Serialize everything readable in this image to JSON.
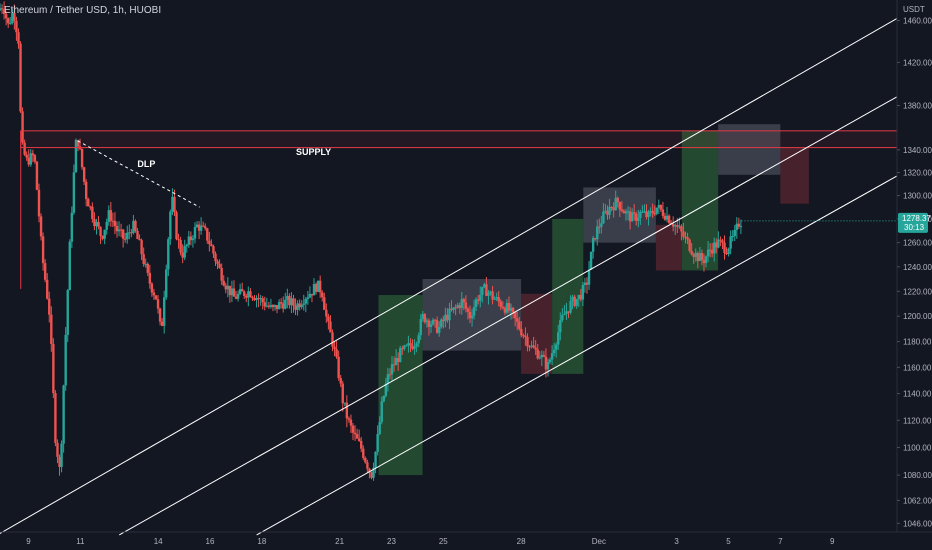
{
  "header": {
    "title": "Ethereum / Tether USD, 1h, HUOBI"
  },
  "price_axis": {
    "unit": "USDT",
    "ticks": [
      "1460.00",
      "1420.00",
      "1380.00",
      "1340.00",
      "1320.00",
      "1300.00",
      "1280.00",
      "1260.00",
      "1240.00",
      "1220.00",
      "1200.00",
      "1180.00",
      "1160.00",
      "1140.00",
      "1120.00",
      "1100.00",
      "1080.00",
      "1062.00",
      "1046.00"
    ],
    "tick_values": [
      1460,
      1420,
      1380,
      1340,
      1320,
      1300,
      1280,
      1260,
      1240,
      1220,
      1200,
      1180,
      1160,
      1140,
      1120,
      1100,
      1080,
      1062,
      1046
    ],
    "last_price": "1278.37",
    "countdown": "30:13"
  },
  "time_axis": {
    "labels": [
      "9",
      "11",
      "14",
      "16",
      "18",
      "21",
      "23",
      "25",
      "28",
      "Dec",
      "3",
      "5",
      "7",
      "9"
    ],
    "positions": [
      9,
      11,
      14,
      16,
      18,
      21,
      23,
      25,
      28,
      31,
      34,
      36,
      38,
      40
    ]
  },
  "annotations": {
    "supply_label": "SUPPLY",
    "dlp_label": "DLP"
  },
  "colors": {
    "background": "#131722",
    "bull": "#26a69a",
    "bear": "#ef5350",
    "supply": "#e53945",
    "channel": "#ffffff",
    "box_green": "#2e6b3c",
    "box_red": "#6b2a35",
    "box_grey": "#5a5f6b",
    "price_tag": "#26a69a"
  },
  "chart_data": {
    "type": "candlestick",
    "title": "Ethereum / Tether USD, 1h, HUOBI",
    "ylabel": "USDT",
    "yscale": "log",
    "ylim": [
      1040,
      1480
    ],
    "x_axis": "day of month (Nov 8 – Dec 10)",
    "xlim": [
      7.9,
      42.5
    ],
    "price_path": [
      [
        7.9,
        1470
      ],
      [
        8.1,
        1475
      ],
      [
        8.3,
        1455
      ],
      [
        8.5,
        1470
      ],
      [
        8.7,
        1440
      ],
      [
        8.8,
        1345
      ],
      [
        9.0,
        1330
      ],
      [
        9.3,
        1335
      ],
      [
        9.6,
        1250
      ],
      [
        9.9,
        1200
      ],
      [
        10.1,
        1110
      ],
      [
        10.3,
        1080
      ],
      [
        10.5,
        1180
      ],
      [
        10.7,
        1270
      ],
      [
        10.9,
        1345
      ],
      [
        11.0,
        1348
      ],
      [
        11.3,
        1300
      ],
      [
        11.6,
        1280
      ],
      [
        11.9,
        1265
      ],
      [
        12.2,
        1285
      ],
      [
        12.5,
        1270
      ],
      [
        12.8,
        1262
      ],
      [
        13.1,
        1275
      ],
      [
        13.4,
        1255
      ],
      [
        13.7,
        1230
      ],
      [
        14.0,
        1215
      ],
      [
        14.2,
        1185
      ],
      [
        14.4,
        1245
      ],
      [
        14.6,
        1300
      ],
      [
        14.8,
        1265
      ],
      [
        15.0,
        1250
      ],
      [
        15.3,
        1262
      ],
      [
        15.6,
        1275
      ],
      [
        15.9,
        1268
      ],
      [
        16.1,
        1258
      ],
      [
        16.4,
        1240
      ],
      [
        16.7,
        1225
      ],
      [
        17.0,
        1215
      ],
      [
        17.3,
        1218
      ],
      [
        17.6,
        1220
      ],
      [
        17.9,
        1215
      ],
      [
        18.2,
        1210
      ],
      [
        18.5,
        1205
      ],
      [
        18.8,
        1210
      ],
      [
        19.1,
        1212
      ],
      [
        19.4,
        1208
      ],
      [
        19.7,
        1215
      ],
      [
        20.0,
        1220
      ],
      [
        20.2,
        1225
      ],
      [
        20.4,
        1220
      ],
      [
        20.6,
        1195
      ],
      [
        20.8,
        1180
      ],
      [
        21.0,
        1160
      ],
      [
        21.2,
        1135
      ],
      [
        21.4,
        1120
      ],
      [
        21.6,
        1110
      ],
      [
        21.9,
        1100
      ],
      [
        22.1,
        1090
      ],
      [
        22.3,
        1080
      ],
      [
        22.5,
        1100
      ],
      [
        22.7,
        1130
      ],
      [
        22.9,
        1150
      ],
      [
        23.1,
        1160
      ],
      [
        23.4,
        1170
      ],
      [
        23.7,
        1175
      ],
      [
        24.0,
        1180
      ],
      [
        24.3,
        1200
      ],
      [
        24.6,
        1195
      ],
      [
        24.9,
        1190
      ],
      [
        25.2,
        1200
      ],
      [
        25.5,
        1205
      ],
      [
        25.8,
        1212
      ],
      [
        26.1,
        1200
      ],
      [
        26.4,
        1215
      ],
      [
        26.7,
        1222
      ],
      [
        27.0,
        1215
      ],
      [
        27.3,
        1210
      ],
      [
        27.6,
        1205
      ],
      [
        27.9,
        1195
      ],
      [
        28.2,
        1185
      ],
      [
        28.5,
        1175
      ],
      [
        28.8,
        1170
      ],
      [
        29.1,
        1160
      ],
      [
        29.4,
        1180
      ],
      [
        29.7,
        1200
      ],
      [
        30.0,
        1210
      ],
      [
        30.3,
        1215
      ],
      [
        30.6,
        1225
      ],
      [
        30.9,
        1265
      ],
      [
        31.2,
        1280
      ],
      [
        31.5,
        1290
      ],
      [
        31.8,
        1295
      ],
      [
        32.1,
        1285
      ],
      [
        32.4,
        1280
      ],
      [
        32.7,
        1285
      ],
      [
        33.0,
        1282
      ],
      [
        33.3,
        1290
      ],
      [
        33.6,
        1285
      ],
      [
        33.9,
        1278
      ],
      [
        34.2,
        1270
      ],
      [
        34.5,
        1260
      ],
      [
        34.8,
        1250
      ],
      [
        35.1,
        1245
      ],
      [
        35.4,
        1255
      ],
      [
        35.7,
        1260
      ],
      [
        36.0,
        1255
      ],
      [
        36.3,
        1265
      ],
      [
        36.5,
        1278
      ]
    ]
  },
  "drawings": {
    "supply_zone": {
      "top": 1357,
      "bottom": 1342,
      "x_start": 8.7,
      "x_end": 42.5
    },
    "dlp_line": [
      [
        10.9,
        1348
      ],
      [
        15.6,
        1290
      ]
    ],
    "dlp_label_at": [
      13.2,
      1325
    ],
    "channel": [
      {
        "points": [
          [
            7.8,
            1038
          ],
          [
            42.5,
            1462
          ]
        ]
      },
      {
        "points": [
          [
            12.5,
            1038
          ],
          [
            42.5,
            1388
          ]
        ]
      },
      {
        "points": [
          [
            17.8,
            1038
          ],
          [
            42.5,
            1317
          ]
        ]
      }
    ],
    "boxes": [
      {
        "kind": "green",
        "x0": 22.5,
        "x1": 24.2,
        "y0": 1080,
        "y1": 1217
      },
      {
        "kind": "grey",
        "x0": 24.2,
        "x1": 28.0,
        "y0": 1173,
        "y1": 1230
      },
      {
        "kind": "red",
        "x0": 28.0,
        "x1": 29.2,
        "y0": 1155,
        "y1": 1218
      },
      {
        "kind": "green",
        "x0": 29.2,
        "x1": 30.4,
        "y0": 1155,
        "y1": 1280
      },
      {
        "kind": "grey",
        "x0": 30.4,
        "x1": 33.2,
        "y0": 1260,
        "y1": 1307
      },
      {
        "kind": "red",
        "x0": 33.2,
        "x1": 34.2,
        "y0": 1237,
        "y1": 1275
      },
      {
        "kind": "green",
        "x0": 34.2,
        "x1": 35.6,
        "y0": 1237,
        "y1": 1357
      },
      {
        "kind": "grey",
        "x0": 35.6,
        "x1": 38.0,
        "y0": 1318,
        "y1": 1363
      },
      {
        "kind": "red",
        "x0": 38.0,
        "x1": 39.1,
        "y0": 1293,
        "y1": 1342
      }
    ]
  }
}
